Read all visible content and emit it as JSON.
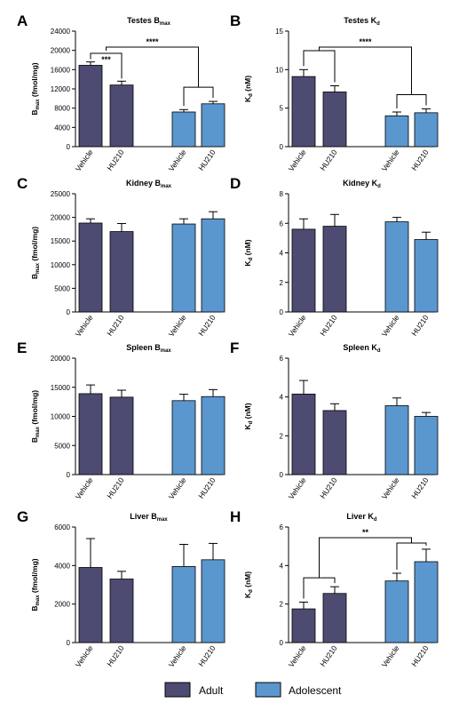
{
  "legend": {
    "adult_label": "Adult",
    "adolescent_label": "Adolescent",
    "adult_color": "#4e4b72",
    "adolescent_color": "#5b97cf"
  },
  "chart_data": [
    {
      "id": "A",
      "type": "bar",
      "title": "Testes B",
      "title_sub": "max",
      "ylabel": "B",
      "ylabel_sub": "max",
      "ylabel_suffix": " (fmol/mg)",
      "ylim": [
        0,
        24000
      ],
      "yticks": [
        "0",
        "4000",
        "8000",
        "12000",
        "16000",
        "20000",
        "24000"
      ],
      "categories": [
        "Vehicle",
        "HU210",
        "Vehicle",
        "HU210"
      ],
      "groups": [
        "Adult",
        "Adult",
        "Adolescent",
        "Adolescent"
      ],
      "values": [
        16900,
        12800,
        7200,
        8900
      ],
      "errors": [
        700,
        800,
        500,
        500
      ],
      "annotations": [
        {
          "type": "bracket",
          "from": 0,
          "to": 1,
          "label": "***"
        },
        {
          "type": "group-bracket",
          "label": "****"
        }
      ]
    },
    {
      "id": "B",
      "type": "bar",
      "title": "Testes K",
      "title_sub": "d",
      "ylabel": "K",
      "ylabel_sub": "d",
      "ylabel_suffix": " (nM)",
      "ylim": [
        0,
        15
      ],
      "yticks": [
        "0",
        "5",
        "10",
        "15"
      ],
      "categories": [
        "Vehicle",
        "HU210",
        "Vehicle",
        "HU210"
      ],
      "groups": [
        "Adult",
        "Adult",
        "Adolescent",
        "Adolescent"
      ],
      "values": [
        9.1,
        7.1,
        4.0,
        4.4
      ],
      "errors": [
        0.9,
        0.8,
        0.5,
        0.5
      ],
      "annotations": [
        {
          "type": "group-bracket",
          "label": "****"
        }
      ]
    },
    {
      "id": "C",
      "type": "bar",
      "title": "Kidney B",
      "title_sub": "max",
      "ylabel": "B",
      "ylabel_sub": "max",
      "ylabel_suffix": " (fmol/mg)",
      "ylim": [
        0,
        25000
      ],
      "yticks": [
        "0",
        "5000",
        "10000",
        "15000",
        "20000",
        "25000"
      ],
      "categories": [
        "Vehicle",
        "HU210",
        "Vehicle",
        "HU210"
      ],
      "groups": [
        "Adult",
        "Adult",
        "Adolescent",
        "Adolescent"
      ],
      "values": [
        18800,
        17000,
        18600,
        19700
      ],
      "errors": [
        900,
        1700,
        1100,
        1500
      ],
      "annotations": []
    },
    {
      "id": "D",
      "type": "bar",
      "title": "Kidney K",
      "title_sub": "d",
      "ylabel": "K",
      "ylabel_sub": "d",
      "ylabel_suffix": " (nM)",
      "ylim": [
        0,
        8
      ],
      "yticks": [
        "0",
        "2",
        "4",
        "6",
        "8"
      ],
      "categories": [
        "Vehicle",
        "HU210",
        "Vehicle",
        "HU210"
      ],
      "groups": [
        "Adult",
        "Adult",
        "Adolescent",
        "Adolescent"
      ],
      "values": [
        5.6,
        5.8,
        6.1,
        4.9
      ],
      "errors": [
        0.7,
        0.8,
        0.3,
        0.5
      ],
      "annotations": []
    },
    {
      "id": "E",
      "type": "bar",
      "title": "Spleen B",
      "title_sub": "max",
      "ylabel": "B",
      "ylabel_sub": "max",
      "ylabel_suffix": " (fmol/mg)",
      "ylim": [
        0,
        20000
      ],
      "yticks": [
        "0",
        "5000",
        "10000",
        "15000",
        "20000"
      ],
      "categories": [
        "Vehicle",
        "HU210",
        "Vehicle",
        "HU210"
      ],
      "groups": [
        "Adult",
        "Adult",
        "Adolescent",
        "Adolescent"
      ],
      "values": [
        13900,
        13300,
        12700,
        13400
      ],
      "errors": [
        1500,
        1200,
        1100,
        1200
      ],
      "annotations": []
    },
    {
      "id": "F",
      "type": "bar",
      "title": "Spleen K",
      "title_sub": "d",
      "ylabel": "K",
      "ylabel_sub": "d",
      "ylabel_suffix": " (nM)",
      "ylim": [
        0,
        6
      ],
      "yticks": [
        "0",
        "2",
        "4",
        "6"
      ],
      "categories": [
        "Vehicle",
        "HU210",
        "Vehicle",
        "HU210"
      ],
      "groups": [
        "Adult",
        "Adult",
        "Adolescent",
        "Adolescent"
      ],
      "values": [
        4.15,
        3.3,
        3.55,
        3.0
      ],
      "errors": [
        0.7,
        0.35,
        0.4,
        0.2
      ],
      "annotations": []
    },
    {
      "id": "G",
      "type": "bar",
      "title": "Liver B",
      "title_sub": "max",
      "ylabel": "B",
      "ylabel_sub": "max",
      "ylabel_suffix": " (fmol/mg)",
      "ylim": [
        0,
        6000
      ],
      "yticks": [
        "0",
        "2000",
        "4000",
        "6000"
      ],
      "categories": [
        "Vehicle",
        "HU210",
        "Vehicle",
        "HU210"
      ],
      "groups": [
        "Adult",
        "Adult",
        "Adolescent",
        "Adolescent"
      ],
      "values": [
        3900,
        3300,
        3950,
        4300
      ],
      "errors": [
        1500,
        400,
        1150,
        850
      ],
      "annotations": []
    },
    {
      "id": "H",
      "type": "bar",
      "title": "Liver K",
      "title_sub": "d",
      "ylabel": "K",
      "ylabel_sub": "d",
      "ylabel_suffix": " (nM)",
      "ylim": [
        0,
        6
      ],
      "yticks": [
        "0",
        "2",
        "4",
        "6"
      ],
      "categories": [
        "Vehicle",
        "HU210",
        "Vehicle",
        "HU210"
      ],
      "groups": [
        "Adult",
        "Adult",
        "Adolescent",
        "Adolescent"
      ],
      "values": [
        1.75,
        2.55,
        3.2,
        4.2
      ],
      "errors": [
        0.35,
        0.35,
        0.4,
        0.65
      ],
      "annotations": [
        {
          "type": "group-bracket-up",
          "label": "**"
        }
      ]
    }
  ]
}
